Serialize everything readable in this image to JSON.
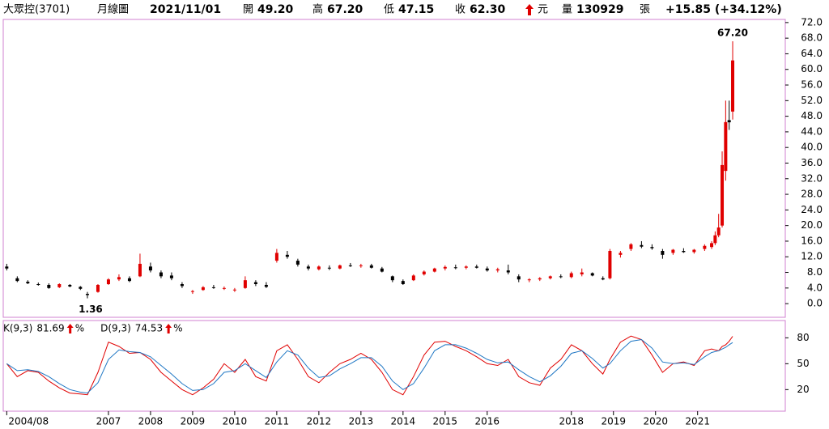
{
  "header": {
    "name": "大眾控(3701)",
    "period": "月線圖",
    "date": "2021/11/01",
    "open_label": "開",
    "open": "49.20",
    "high_label": "高",
    "high": "67.20",
    "low_label": "低",
    "low": "47.15",
    "close_label": "收",
    "close": "62.30",
    "unit": "元",
    "volume_label": "量",
    "volume": "130929",
    "volume_unit": "張",
    "change": "+15.85 (+34.12%)"
  },
  "chart_data": [
    {
      "type": "candlestick",
      "up_color": "#e00000",
      "down_color": "#000000",
      "x": [
        "2004/08",
        "2004/11",
        "2005/02",
        "2005/05",
        "2005/08",
        "2005/11",
        "2006/02",
        "2006/05",
        "2006/07",
        "2006/10",
        "2007/01",
        "2007/04",
        "2007/07",
        "2007/10",
        "2008/01",
        "2008/04",
        "2008/07",
        "2008/10",
        "2009/01",
        "2009/04",
        "2009/07",
        "2009/10",
        "2010/01",
        "2010/04",
        "2010/07",
        "2010/10",
        "2011/01",
        "2011/04",
        "2011/07",
        "2011/10",
        "2012/01",
        "2012/04",
        "2012/07",
        "2012/10",
        "2013/01",
        "2013/04",
        "2013/07",
        "2013/10",
        "2014/01",
        "2014/04",
        "2014/07",
        "2014/10",
        "2015/01",
        "2015/04",
        "2015/07",
        "2015/10",
        "2016/01",
        "2016/04",
        "2016/07",
        "2016/10",
        "2017/01",
        "2017/04",
        "2017/07",
        "2017/10",
        "2018/01",
        "2018/04",
        "2018/07",
        "2018/10",
        "2018/12",
        "2019/03",
        "2019/06",
        "2019/09",
        "2019/12",
        "2020/03",
        "2020/06",
        "2020/09",
        "2020/12",
        "2021/03",
        "2021/05",
        "2021/06",
        "2021/07",
        "2021/08",
        "2021/09",
        "2021/10",
        "2021/11"
      ],
      "open": [
        9.5,
        6.5,
        5.6,
        5.0,
        4.8,
        4.2,
        4.8,
        4.3,
        2.5,
        3.0,
        5.0,
        6.2,
        6.5,
        7.0,
        9.5,
        8.0,
        7.2,
        5.0,
        3.0,
        3.5,
        4.2,
        3.8,
        3.5,
        4.0,
        5.5,
        4.8,
        11.0,
        12.5,
        11.0,
        9.5,
        8.8,
        9.2,
        9.0,
        9.8,
        9.6,
        9.8,
        9.0,
        7.0,
        5.8,
        6.0,
        7.5,
        8.2,
        9.0,
        9.3,
        9.2,
        9.5,
        9.0,
        8.5,
        8.5,
        7.0,
        6.0,
        6.2,
        6.5,
        7.0,
        6.8,
        7.5,
        7.8,
        6.5,
        6.5,
        12.5,
        14.0,
        15.0,
        14.5,
        13.5,
        13.0,
        13.5,
        13.2,
        14.0,
        14.5,
        15.5,
        17.5,
        20.0,
        34.0,
        47.0,
        49.2
      ],
      "high": [
        10.2,
        7,
        6,
        5.4,
        5.2,
        5.2,
        5.0,
        4.5,
        3.0,
        5.0,
        6.5,
        7.5,
        7.0,
        12.8,
        10.5,
        8.5,
        8.0,
        5.5,
        3.5,
        4.5,
        4.8,
        4.4,
        4.0,
        7.0,
        6.0,
        5.5,
        14.0,
        13.5,
        11.5,
        10.0,
        9.8,
        9.8,
        10.0,
        10.4,
        10.2,
        10.2,
        9.4,
        7.2,
        6.2,
        7.5,
        8.5,
        9.2,
        9.8,
        10.0,
        9.8,
        10.0,
        9.5,
        9.2,
        10.0,
        7.5,
        6.5,
        6.8,
        7.2,
        7.5,
        8.2,
        9.0,
        8.0,
        7.0,
        14.0,
        13.5,
        15.5,
        16.0,
        15.2,
        14.0,
        14.0,
        14.2,
        14.0,
        15.2,
        16.0,
        18.5,
        23.0,
        39.0,
        52.0,
        52.0,
        67.2
      ],
      "low": [
        8.5,
        5.5,
        5,
        4.6,
        3.8,
        4.0,
        4.2,
        3.5,
        1.36,
        2.8,
        4.8,
        5.8,
        5.5,
        6.8,
        8.0,
        6.5,
        6.0,
        4.0,
        2.5,
        3.3,
        3.8,
        3.5,
        3.0,
        3.8,
        4.5,
        4.0,
        10.5,
        11.5,
        9.5,
        8.5,
        8.5,
        8.6,
        8.8,
        9.4,
        9.2,
        9.0,
        8.0,
        5.5,
        4.8,
        5.8,
        7.2,
        8.0,
        8.5,
        8.8,
        8.8,
        9.0,
        8.2,
        8.0,
        7.5,
        5.5,
        5.5,
        5.8,
        6.2,
        6.5,
        6.5,
        7.0,
        7.0,
        6.0,
        6.2,
        11.8,
        13.5,
        14.2,
        13.8,
        11.5,
        12.5,
        13.0,
        12.8,
        13.5,
        14.0,
        15.0,
        17.0,
        19.5,
        31.5,
        44.5,
        47.15
      ],
      "close": [
        9.0,
        5.8,
        5.2,
        4.8,
        4.0,
        5.0,
        4.4,
        3.8,
        2.2,
        4.8,
        6.2,
        6.8,
        5.8,
        10.2,
        8.5,
        7.0,
        6.5,
        4.5,
        3.2,
        4.2,
        4.0,
        4.0,
        3.6,
        6.0,
        5.0,
        4.3,
        13.0,
        12.0,
        10.0,
        9.0,
        9.5,
        9.0,
        9.8,
        9.6,
        9.8,
        9.2,
        8.2,
        6.0,
        5.0,
        7.2,
        8.2,
        9.0,
        9.4,
        9.2,
        9.5,
        9.2,
        8.5,
        8.8,
        8.0,
        6.2,
        6.2,
        6.5,
        7.0,
        6.8,
        7.8,
        8.0,
        7.2,
        6.2,
        13.5,
        13.0,
        15.2,
        14.6,
        14.2,
        12.5,
        13.8,
        13.2,
        13.8,
        14.8,
        15.5,
        17.5,
        19.5,
        35.5,
        46.5,
        46.45,
        62.3
      ],
      "annotations": [
        {
          "value": 67.2,
          "label": "67.20",
          "x": "2021/11"
        },
        {
          "value": 1.36,
          "label": "1.36",
          "x": "2006/07"
        }
      ],
      "xlim": [
        "2004/07",
        "2023/02"
      ],
      "ylim": [
        -3.5,
        72.8
      ],
      "xticks": [
        "2004/08",
        "2007",
        "2008",
        "2009",
        "2010",
        "2011",
        "2012",
        "2013",
        "2014",
        "2015",
        "2016",
        "2018",
        "2019",
        "2020",
        "2021"
      ],
      "yticks": [
        {
          "value": 0,
          "label": "0.0"
        },
        {
          "value": 4,
          "label": "4.0"
        },
        {
          "value": 8,
          "label": "8.0"
        },
        {
          "value": 12,
          "label": "12.0"
        },
        {
          "value": 16,
          "label": "16.0"
        },
        {
          "value": 20,
          "label": "20.0"
        },
        {
          "value": 24,
          "label": "24.0"
        },
        {
          "value": 28,
          "label": "28.0"
        },
        {
          "value": 32,
          "label": "32.0"
        },
        {
          "value": 36,
          "label": "36.0"
        },
        {
          "value": 40,
          "label": "40.0"
        },
        {
          "value": 44,
          "label": "44.0"
        },
        {
          "value": 48,
          "label": "48.0"
        },
        {
          "value": 52,
          "label": "52.0"
        },
        {
          "value": 56,
          "label": "56.0"
        },
        {
          "value": 60,
          "label": "60.0"
        },
        {
          "value": 64,
          "label": "64.0"
        },
        {
          "value": 68,
          "label": "68.0"
        },
        {
          "value": 72,
          "label": "72.0"
        }
      ]
    },
    {
      "type": "line",
      "x": [
        "2004/08",
        "2004/11",
        "2005/02",
        "2005/05",
        "2005/08",
        "2005/11",
        "2006/02",
        "2006/05",
        "2006/07",
        "2006/10",
        "2007/01",
        "2007/04",
        "2007/07",
        "2007/10",
        "2008/01",
        "2008/04",
        "2008/07",
        "2008/10",
        "2009/01",
        "2009/04",
        "2009/07",
        "2009/10",
        "2010/01",
        "2010/04",
        "2010/07",
        "2010/10",
        "2011/01",
        "2011/04",
        "2011/07",
        "2011/10",
        "2012/01",
        "2012/04",
        "2012/07",
        "2012/10",
        "2013/01",
        "2013/04",
        "2013/07",
        "2013/10",
        "2014/01",
        "2014/04",
        "2014/07",
        "2014/10",
        "2015/01",
        "2015/04",
        "2015/07",
        "2015/10",
        "2016/01",
        "2016/04",
        "2016/07",
        "2016/10",
        "2017/01",
        "2017/04",
        "2017/07",
        "2017/10",
        "2018/01",
        "2018/04",
        "2018/07",
        "2018/10",
        "2018/12",
        "2019/03",
        "2019/06",
        "2019/09",
        "2019/12",
        "2020/03",
        "2020/06",
        "2020/09",
        "2020/12",
        "2021/03",
        "2021/05",
        "2021/06",
        "2021/07",
        "2021/08",
        "2021/09",
        "2021/10",
        "2021/11"
      ],
      "series": [
        {
          "name": "K(9,3)",
          "value_label": "81.69",
          "unit": "%",
          "color": "#e00000",
          "values": [
            50,
            35,
            42,
            40,
            30,
            22,
            16,
            15,
            14,
            40,
            75,
            70,
            62,
            63,
            55,
            40,
            30,
            20,
            14,
            22,
            32,
            50,
            40,
            55,
            35,
            30,
            65,
            72,
            55,
            35,
            28,
            40,
            50,
            55,
            62,
            55,
            40,
            20,
            14,
            35,
            60,
            75,
            76,
            70,
            65,
            58,
            50,
            48,
            55,
            35,
            28,
            25,
            45,
            55,
            72,
            65,
            50,
            38,
            55,
            75,
            82,
            78,
            60,
            40,
            50,
            52,
            48,
            65,
            67,
            66,
            65,
            70,
            72,
            76,
            81.69
          ]
        },
        {
          "name": "D(9,3)",
          "value_label": "74.53",
          "unit": "%",
          "color": "#1f77c4",
          "values": [
            50,
            42,
            43,
            41,
            35,
            27,
            20,
            17,
            16,
            28,
            55,
            66,
            64,
            63,
            58,
            48,
            38,
            27,
            19,
            20,
            27,
            40,
            42,
            50,
            42,
            34,
            52,
            65,
            60,
            45,
            34,
            36,
            44,
            50,
            57,
            57,
            47,
            30,
            20,
            27,
            45,
            65,
            72,
            72,
            68,
            62,
            55,
            51,
            52,
            43,
            35,
            29,
            36,
            47,
            62,
            65,
            56,
            45,
            50,
            65,
            76,
            78,
            68,
            52,
            50,
            51,
            49,
            58,
            63,
            64,
            65,
            67,
            69,
            72,
            74.53
          ]
        }
      ],
      "xlim": [
        "2004/07",
        "2023/02"
      ],
      "ylim": [
        -5,
        100
      ],
      "yticks": [
        20,
        50,
        80
      ]
    }
  ]
}
